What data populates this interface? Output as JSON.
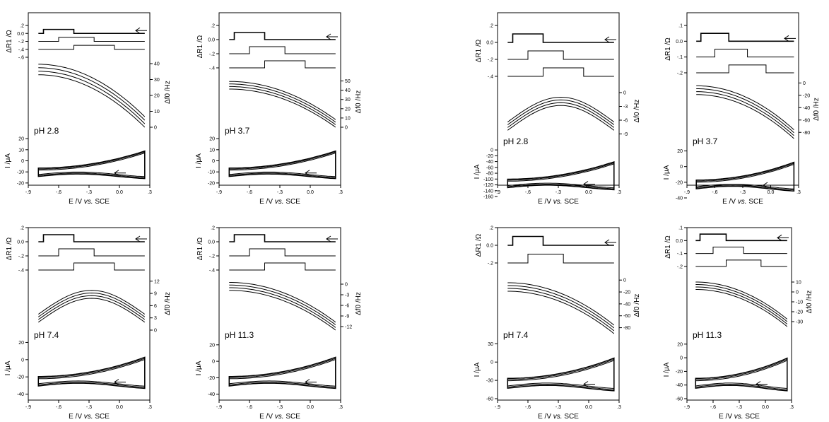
{
  "chart_data": [
    {
      "type": "line",
      "ph": "pH 2.8",
      "x_label_parts": [
        "E /V ",
        "vs.",
        " SCE"
      ],
      "x_ticks": [
        -0.9,
        -0.6,
        -0.3,
        0.0,
        0.3
      ],
      "x_tick_labels": [
        "-.9",
        "-.6",
        "-.3",
        "0.0",
        ".3"
      ],
      "r_label": "ΔR1 /Ω",
      "r_ticks": [
        0.2,
        0.0,
        -0.2,
        -0.4,
        -0.6
      ],
      "r_tick_labels": [
        ".2",
        "0.0",
        "-.2",
        "-.4",
        "-.6"
      ],
      "f_label": "Δf0 /Hz",
      "f_ticks": [
        40,
        30,
        20,
        10,
        0
      ],
      "f_tick_labels": [
        "40",
        "30",
        "20",
        "10",
        "0"
      ],
      "i_label": "I /μA",
      "i_ticks": [
        20,
        10,
        0,
        -10,
        -20
      ],
      "i_tick_labels": [
        "20",
        "10",
        "0",
        "-10",
        "-20"
      ],
      "r_range": [
        -0.6,
        0.2
      ],
      "f_range": [
        0,
        44
      ],
      "i_range": [
        -22,
        22
      ]
    },
    {
      "type": "line",
      "ph": "pH 3.7",
      "x_label_parts": [
        "E /V ",
        "vs.",
        " SCE"
      ],
      "x_ticks": [
        -0.9,
        -0.6,
        -0.3,
        0.0,
        0.3
      ],
      "x_tick_labels": [
        "-.9",
        "-.6",
        "-.3",
        "0.0",
        ".3"
      ],
      "r_label": "ΔR1 /Ω",
      "r_ticks": [
        0.2,
        0.0,
        -0.2,
        -0.4
      ],
      "r_tick_labels": [
        ".2",
        "0.0",
        "-.2",
        "-.4"
      ],
      "f_label": "Δf0 /Hz",
      "f_ticks": [
        50,
        40,
        30,
        20,
        10,
        0
      ],
      "f_tick_labels": [
        "50",
        "40",
        "30",
        "20",
        "10",
        "0"
      ],
      "i_label": "I /μA",
      "i_ticks": [
        20,
        10,
        0,
        -10,
        -20
      ],
      "i_tick_labels": [
        "20",
        "10",
        "0",
        "-10",
        "-20"
      ],
      "r_range": [
        -0.4,
        0.2
      ],
      "f_range": [
        0,
        55
      ],
      "i_range": [
        -22,
        22
      ]
    },
    {
      "type": "line",
      "ph": "pH 2.8",
      "x_label_parts": [
        "E /V ",
        "vs.",
        " SCE"
      ],
      "x_ticks": [
        -0.9,
        -0.6,
        -0.3,
        0.0,
        0.3
      ],
      "x_tick_labels": [
        "-.9",
        "-.6",
        "-.3",
        "0.0",
        ".3"
      ],
      "r_label": "ΔR1 /Ω",
      "r_ticks": [
        0.2,
        0.0,
        -0.2,
        -0.4
      ],
      "r_tick_labels": [
        ".2",
        "0.0",
        "-.2",
        "-.4"
      ],
      "f_label": "Δf0 /Hz",
      "f_ticks": [
        0,
        -3,
        -6,
        -9
      ],
      "f_tick_labels": [
        "0",
        "-3",
        "-6",
        "-9"
      ],
      "i_label": "I /μA",
      "i_ticks": [
        0,
        -20,
        -40,
        -60,
        -80,
        -100,
        -120,
        -140,
        -160
      ],
      "i_tick_labels": [
        "0",
        "-20",
        "-40",
        "-60",
        "-80",
        "-100",
        "-120",
        "-140",
        "-160"
      ],
      "r_range": [
        -0.4,
        0.2
      ],
      "f_range": [
        -10,
        2
      ],
      "i_range": [
        -160,
        10
      ]
    },
    {
      "type": "line",
      "ph": "pH 3.7",
      "x_label_parts": [
        "E /V ",
        "vs.",
        " SCE"
      ],
      "x_ticks": [
        -0.9,
        -0.6,
        -0.3,
        0.0,
        0.3
      ],
      "x_tick_labels": [
        "-.9",
        "-.6",
        "-.3",
        "0.0",
        ".3"
      ],
      "r_label": "ΔR1 /Ω",
      "r_ticks": [
        0.1,
        0.0,
        -0.1,
        -0.2
      ],
      "r_tick_labels": [
        ".1",
        "0.0",
        "-.1",
        "-.2"
      ],
      "f_label": "Δf0 /Hz",
      "f_ticks": [
        0,
        -20,
        -40,
        -60,
        -80
      ],
      "f_tick_labels": [
        "0",
        "-20",
        "-40",
        "-60",
        "-80"
      ],
      "i_label": "I /μA",
      "i_ticks": [
        20,
        0,
        -20,
        -40
      ],
      "i_tick_labels": [
        "20",
        "0",
        "-20",
        "-40"
      ],
      "r_range": [
        -0.2,
        0.1
      ],
      "f_range": [
        -90,
        5
      ],
      "i_range": [
        -40,
        25
      ]
    },
    {
      "type": "line",
      "ph": "pH 7.4",
      "x_label_parts": [
        "E /V ",
        "vs.",
        " SCE"
      ],
      "x_ticks": [
        -0.9,
        -0.6,
        -0.3,
        0.0,
        0.3
      ],
      "x_tick_labels": [
        "-.9",
        "-.6",
        "-.3",
        "0.0",
        ".3"
      ],
      "r_label": "ΔR1 /Ω",
      "r_ticks": [
        0.2,
        0.0,
        -0.2,
        -0.4
      ],
      "r_tick_labels": [
        ".2",
        "0.0",
        "-.2",
        "-.4"
      ],
      "f_label": "Δf0 /Hz",
      "f_ticks": [
        12,
        9,
        6,
        3,
        0
      ],
      "f_tick_labels": [
        "12",
        "9",
        "6",
        "3",
        "0"
      ],
      "i_label": "I /μA",
      "i_ticks": [
        20,
        0,
        -20,
        -40
      ],
      "i_tick_labels": [
        "20",
        "0",
        "-20",
        "-40"
      ],
      "r_range": [
        -0.4,
        0.2
      ],
      "f_range": [
        0,
        13
      ],
      "i_range": [
        -42,
        22
      ]
    },
    {
      "type": "line",
      "ph": "pH 11.3",
      "x_label_parts": [
        "E /V ",
        "vs.",
        " SCE"
      ],
      "x_ticks": [
        -0.9,
        -0.6,
        -0.3,
        0.0,
        0.3
      ],
      "x_tick_labels": [
        "-.9",
        "-.6",
        "-.3",
        "0.0",
        ".3"
      ],
      "r_label": "ΔR1 /Ω",
      "r_ticks": [
        0.2,
        0.0,
        -0.2,
        -0.4
      ],
      "r_tick_labels": [
        ".2",
        "0.0",
        "-.2",
        "-.4"
      ],
      "f_label": "Δf0 /Hz",
      "f_ticks": [
        0,
        -3,
        -6,
        -9,
        -12
      ],
      "f_tick_labels": [
        "0",
        "-3",
        "-6",
        "-9",
        "-12"
      ],
      "i_label": "I /μA",
      "i_ticks": [
        20,
        0,
        -20,
        -40
      ],
      "i_tick_labels": [
        "20",
        "0",
        "-20",
        "-40"
      ],
      "r_range": [
        -0.4,
        0.2
      ],
      "f_range": [
        -13,
        2
      ],
      "i_range": [
        -42,
        25
      ]
    },
    {
      "type": "line",
      "ph": "pH 7.4",
      "x_label_parts": [
        "E /V ",
        "vs.",
        " SCE"
      ],
      "x_ticks": [
        -0.9,
        -0.6,
        -0.3,
        0.0,
        0.3
      ],
      "x_tick_labels": [
        "-.9",
        "-.6",
        "-.3",
        "0.0",
        ".3"
      ],
      "r_label": "ΔR1 /Ω",
      "r_ticks": [
        0.2,
        0.0,
        -0.2
      ],
      "r_tick_labels": [
        ".2",
        "0.0",
        "-.2"
      ],
      "f_label": "Δf0 /Hz",
      "f_ticks": [
        0,
        -20,
        -40,
        -60,
        -80
      ],
      "f_tick_labels": [
        "0",
        "-20",
        "-40",
        "-60",
        "-80"
      ],
      "i_label": "I /μA",
      "i_ticks": [
        30,
        0,
        -30,
        -60
      ],
      "i_tick_labels": [
        "30",
        "0",
        "-30",
        "-60"
      ],
      "r_range": [
        -0.2,
        0.2
      ],
      "f_range": [
        -90,
        5
      ],
      "i_range": [
        -60,
        35
      ]
    },
    {
      "type": "line",
      "ph": "pH 11.3",
      "x_label_parts": [
        "E /V ",
        "vs.",
        " SCE"
      ],
      "x_ticks": [
        -0.9,
        -0.6,
        -0.3,
        0.0,
        0.3
      ],
      "x_tick_labels": [
        "-.9",
        "-.6",
        "-.3",
        "0.0",
        ".3"
      ],
      "r_label": "ΔR1 /Ω",
      "r_ticks": [
        0.1,
        0.0,
        -0.1,
        -0.2
      ],
      "r_tick_labels": [
        ".1",
        "0.0",
        "-.1",
        "-.2"
      ],
      "f_label": "Δf0 /Hz",
      "f_ticks": [
        10,
        0,
        -10,
        -20,
        -30
      ],
      "f_tick_labels": [
        "10",
        "0",
        "-10",
        "-20",
        "-30"
      ],
      "i_label": "I /μA",
      "i_ticks": [
        20,
        0,
        -20,
        -40,
        -60
      ],
      "i_tick_labels": [
        "20",
        "0",
        "-20",
        "-40",
        "-60"
      ],
      "r_range": [
        -0.2,
        0.1
      ],
      "f_range": [
        -35,
        15
      ],
      "i_range": [
        -60,
        25
      ]
    }
  ]
}
